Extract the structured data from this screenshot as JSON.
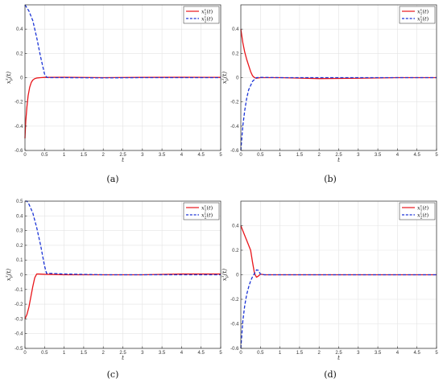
{
  "chart_data": [
    {
      "type": "line",
      "panel_label": "a",
      "xlabel": "t",
      "ylabel_base": "x",
      "ylabel_sup": "τ",
      "ylabel_sub": "p",
      "xlim": [
        0,
        5
      ],
      "ylim": [
        -0.6,
        0.6
      ],
      "xticks": [
        0,
        0.5,
        1,
        1.5,
        2,
        2.5,
        3,
        3.5,
        4,
        4.5,
        5
      ],
      "yticks": [
        -0.6,
        -0.4,
        -0.2,
        0,
        0.2,
        0.4
      ],
      "grid": true,
      "legend_position": "top-right",
      "series": [
        {
          "name": "x₁^τ(t)",
          "legend_sub": "1",
          "legend_sup": "τ",
          "color": "#e8161b",
          "style": "solid",
          "x": [
            0,
            0.02,
            0.05,
            0.08,
            0.12,
            0.16,
            0.2,
            0.25,
            0.3,
            0.4,
            0.5,
            1,
            2,
            3,
            4,
            5
          ],
          "y": [
            -0.5,
            -0.36,
            -0.24,
            -0.15,
            -0.08,
            -0.04,
            -0.02,
            -0.008,
            -0.003,
            0,
            0.002,
            0.003,
            0,
            0.002,
            0.003,
            0.002
          ]
        },
        {
          "name": "x₂^τ(t)",
          "legend_sub": "2",
          "legend_sup": "τ",
          "color": "#1a33d6",
          "style": "dashed",
          "x": [
            0,
            0.1,
            0.2,
            0.3,
            0.4,
            0.5,
            0.55,
            0.6,
            1,
            2,
            3,
            4,
            5
          ],
          "y": [
            0.6,
            0.55,
            0.47,
            0.33,
            0.17,
            0.03,
            0.005,
            0,
            0,
            -0.002,
            0,
            0,
            0
          ]
        }
      ]
    },
    {
      "type": "line",
      "panel_label": "b",
      "xlabel": "t",
      "ylabel_base": "x",
      "ylabel_sup": "τ",
      "ylabel_sub": "p",
      "xlim": [
        0,
        5
      ],
      "ylim": [
        -0.6,
        0.6
      ],
      "xticks": [
        0,
        0.5,
        1,
        1.5,
        2,
        2.5,
        3,
        3.5,
        4,
        4.5,
        5
      ],
      "yticks": [
        -0.6,
        -0.4,
        -0.2,
        0,
        0.2,
        0.4
      ],
      "grid": true,
      "legend_position": "top-right",
      "series": [
        {
          "name": "x₁^τ(t)",
          "legend_sub": "1",
          "legend_sup": "τ",
          "color": "#e8161b",
          "style": "solid",
          "x": [
            0,
            0.05,
            0.1,
            0.15,
            0.2,
            0.25,
            0.3,
            0.35,
            0.4,
            0.5,
            1,
            2,
            3,
            4,
            5
          ],
          "y": [
            0.4,
            0.29,
            0.21,
            0.15,
            0.1,
            0.05,
            0.015,
            0,
            -0.005,
            0,
            0,
            -0.008,
            -0.005,
            0,
            0
          ]
        },
        {
          "name": "x₂^τ(t)",
          "legend_sub": "2",
          "legend_sup": "τ",
          "color": "#1a33d6",
          "style": "dashed",
          "x": [
            0,
            0.05,
            0.1,
            0.15,
            0.2,
            0.3,
            0.4,
            0.5,
            1,
            2,
            3,
            4,
            5
          ],
          "y": [
            -0.6,
            -0.4,
            -0.27,
            -0.17,
            -0.1,
            -0.03,
            0,
            0.002,
            0,
            0,
            0,
            0,
            0
          ]
        }
      ]
    },
    {
      "type": "line",
      "panel_label": "c",
      "xlabel": "t",
      "ylabel_base": "x",
      "ylabel_sup": "τ",
      "ylabel_sub": "p",
      "xlim": [
        0,
        5
      ],
      "ylim": [
        -0.5,
        0.5
      ],
      "xticks": [
        0,
        0.5,
        1,
        1.5,
        2,
        2.5,
        3,
        3.5,
        4,
        4.5,
        5
      ],
      "yticks": [
        -0.5,
        -0.4,
        -0.3,
        -0.2,
        -0.1,
        0,
        0.1,
        0.2,
        0.3,
        0.4,
        0.5
      ],
      "grid": true,
      "legend_position": "top-right",
      "series": [
        {
          "name": "x₁^τ(t)",
          "legend_sub": "1",
          "legend_sup": "τ",
          "color": "#e8161b",
          "style": "solid",
          "x": [
            0,
            0.05,
            0.1,
            0.15,
            0.2,
            0.25,
            0.3,
            0.35,
            0.5,
            1,
            2,
            3,
            4,
            5
          ],
          "y": [
            -0.3,
            -0.27,
            -0.22,
            -0.15,
            -0.08,
            -0.02,
            0.005,
            0.005,
            0.003,
            0,
            0,
            0,
            0.005,
            0.005
          ]
        },
        {
          "name": "x₂^τ(t)",
          "legend_sub": "2",
          "legend_sup": "τ",
          "color": "#1a33d6",
          "style": "dashed",
          "x": [
            0,
            0.05,
            0.1,
            0.2,
            0.3,
            0.4,
            0.5,
            0.55,
            0.6,
            1,
            2,
            3,
            4,
            5
          ],
          "y": [
            0.5,
            0.5,
            0.48,
            0.42,
            0.32,
            0.2,
            0.06,
            0.01,
            0.01,
            0.005,
            0,
            0,
            0,
            0
          ]
        }
      ]
    },
    {
      "type": "line",
      "panel_label": "d",
      "xlabel": "t",
      "ylabel_base": "x",
      "ylabel_sup": "τ",
      "ylabel_sub": "p",
      "xlim": [
        0,
        5
      ],
      "ylim": [
        -0.6,
        0.6
      ],
      "xticks": [
        0,
        0.5,
        1,
        1.5,
        2,
        2.5,
        3,
        3.5,
        4,
        4.5,
        5
      ],
      "yticks": [
        -0.6,
        -0.4,
        -0.2,
        0,
        0.2,
        0.4
      ],
      "grid": true,
      "legend_position": "top-right",
      "series": [
        {
          "name": "x₁^τ(t)",
          "legend_sub": "1",
          "legend_sup": "τ",
          "color": "#e8161b",
          "style": "solid",
          "x": [
            0,
            0.05,
            0.1,
            0.15,
            0.2,
            0.25,
            0.3,
            0.35,
            0.4,
            0.45,
            0.5,
            0.6,
            1,
            2,
            3,
            4,
            5
          ],
          "y": [
            0.4,
            0.36,
            0.32,
            0.28,
            0.24,
            0.2,
            0.1,
            0.01,
            -0.02,
            -0.01,
            0.005,
            0,
            0,
            0,
            0,
            0,
            0
          ]
        },
        {
          "name": "x₂^τ(t)",
          "legend_sub": "2",
          "legend_sup": "τ",
          "color": "#1a33d6",
          "style": "dashed",
          "x": [
            0,
            0.05,
            0.1,
            0.15,
            0.2,
            0.25,
            0.3,
            0.35,
            0.4,
            0.45,
            0.5,
            0.6,
            1,
            2,
            3,
            4,
            5
          ],
          "y": [
            -0.6,
            -0.38,
            -0.25,
            -0.16,
            -0.1,
            -0.05,
            -0.015,
            0.01,
            0.04,
            0.035,
            0.005,
            0,
            0,
            0,
            0,
            0,
            0
          ]
        }
      ]
    }
  ],
  "captions": [
    "(a)",
    "(b)",
    "(c)",
    "(d)"
  ]
}
